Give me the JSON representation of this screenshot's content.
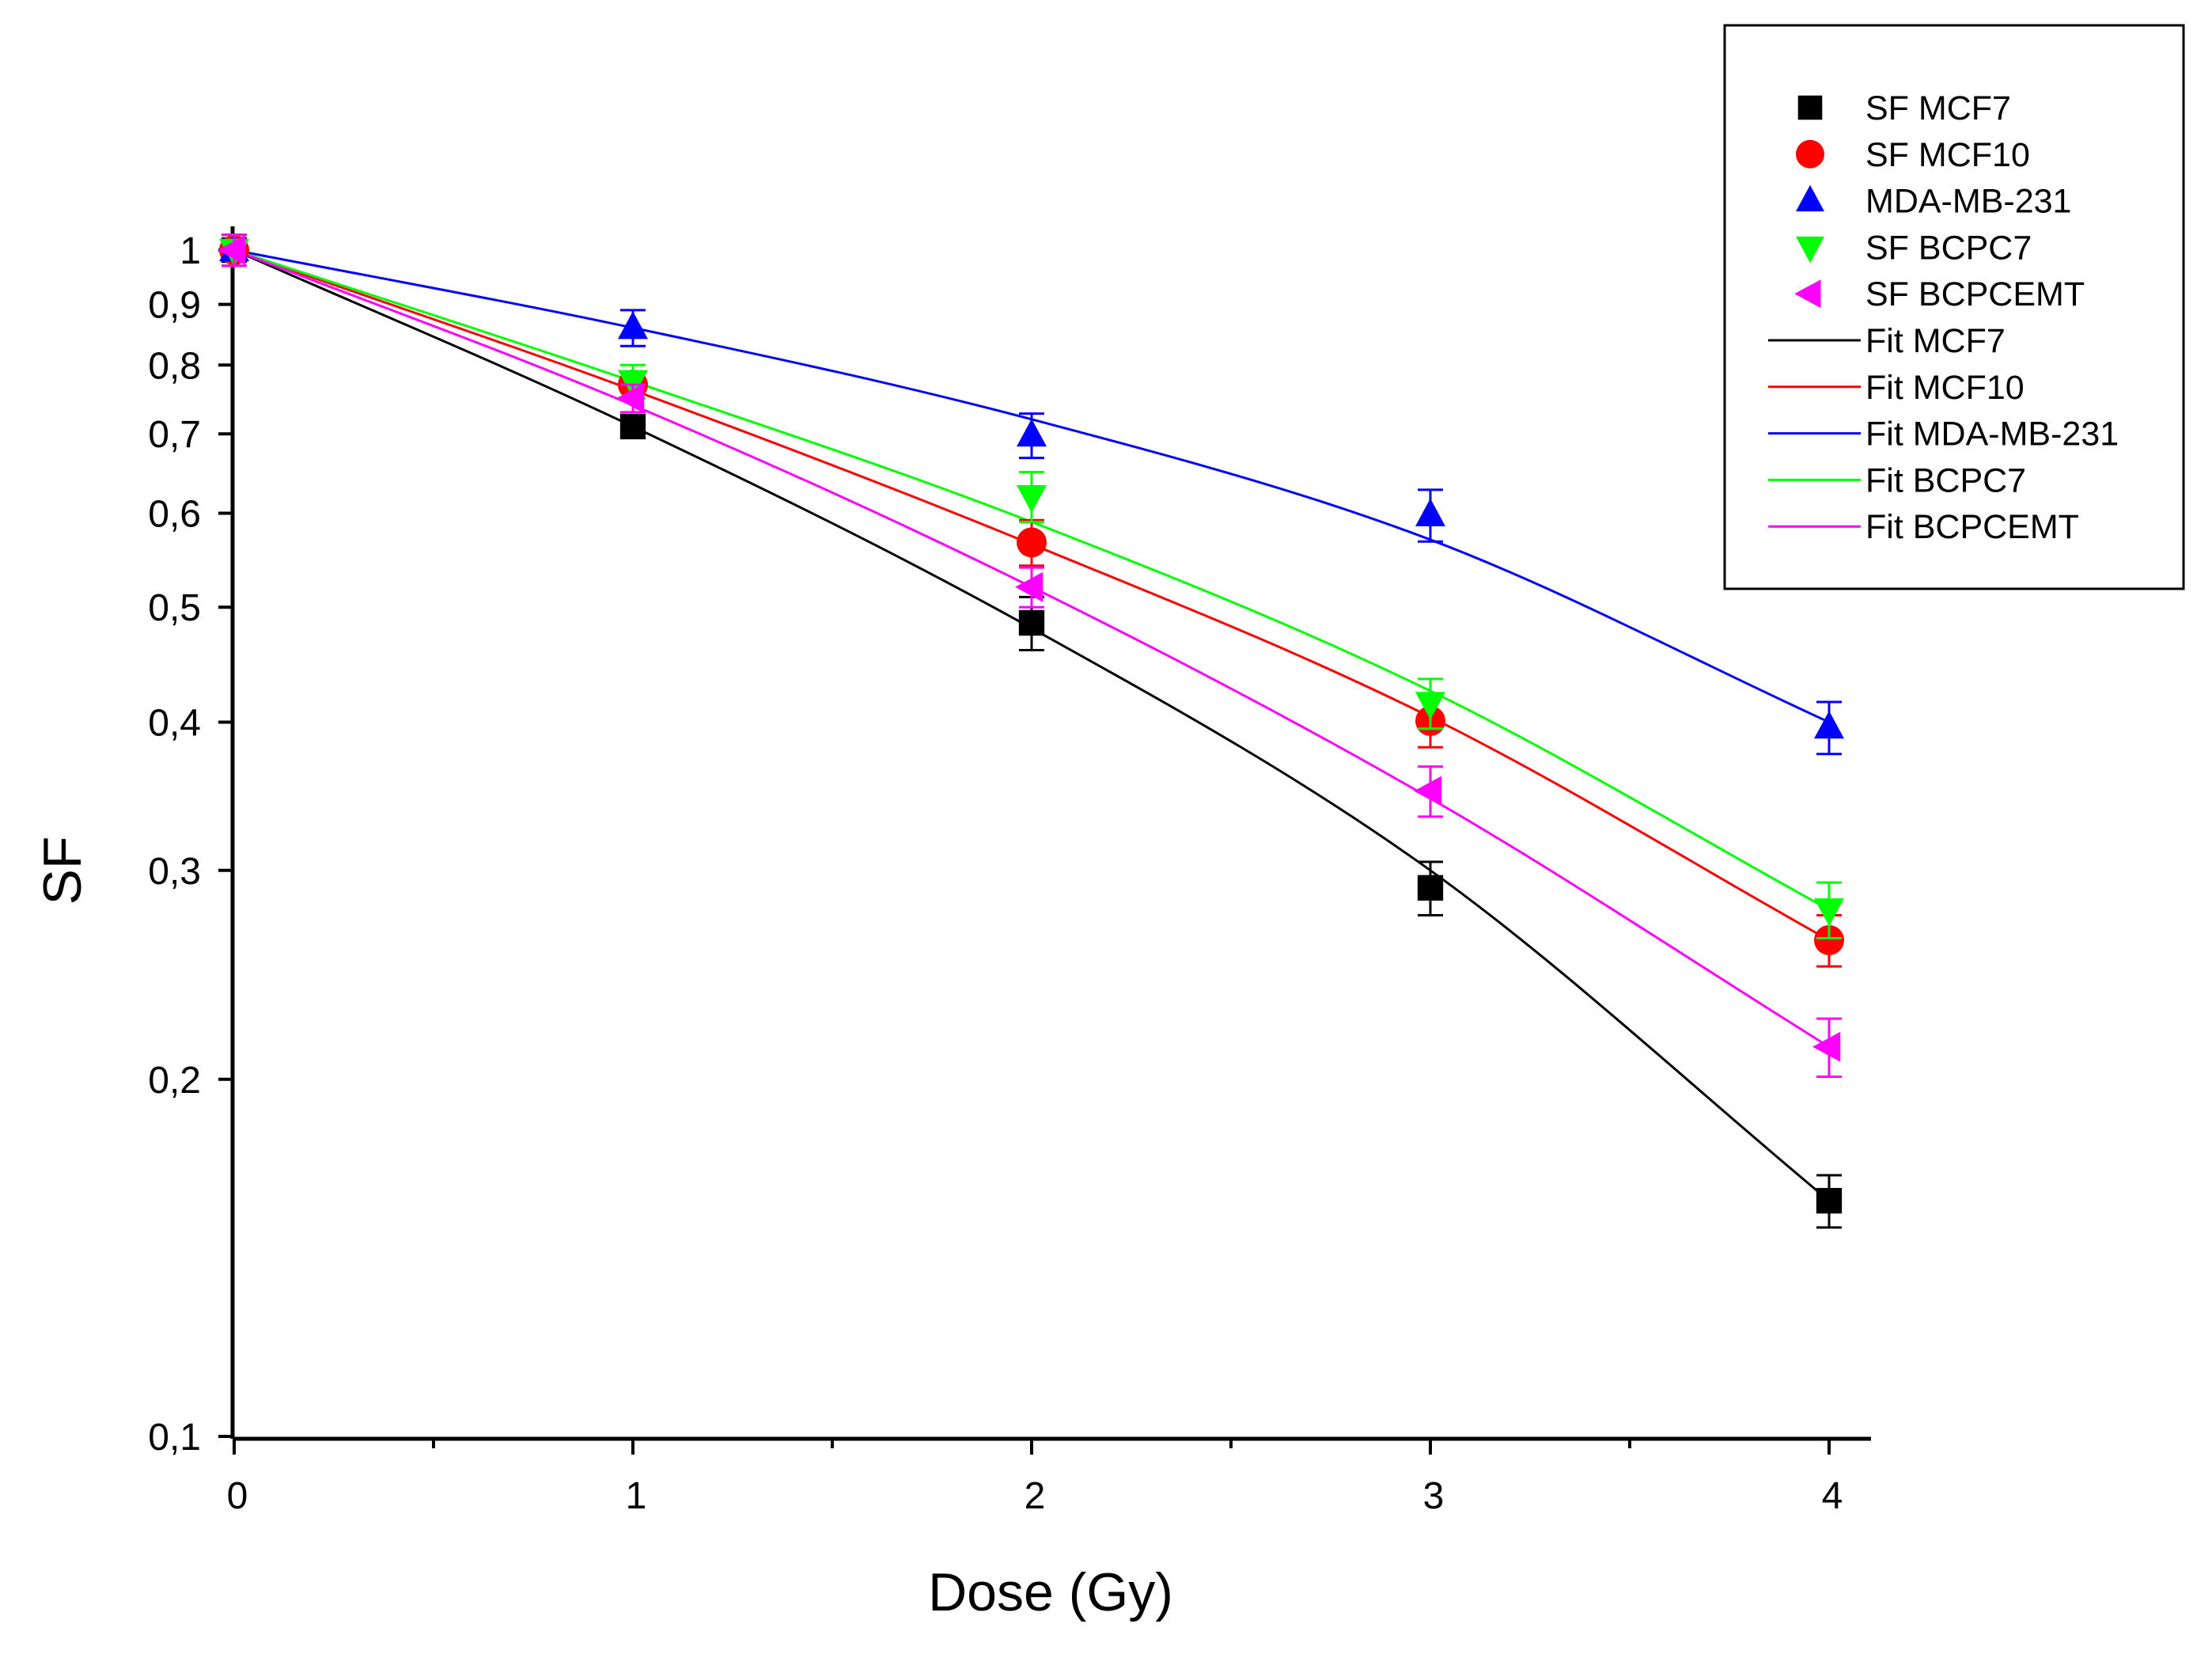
{
  "chart_data": {
    "type": "scatter",
    "title": "",
    "xlabel": "Dose (Gy)",
    "ylabel": "SF",
    "xlim": [
      0,
      4
    ],
    "ylim": [
      0.1,
      1.05
    ],
    "yscale": "log",
    "grid": false,
    "legend_position": "top-right",
    "x_ticks": [
      0,
      1,
      2,
      3,
      4
    ],
    "x_tick_labels": [
      "0",
      "1",
      "2",
      "3",
      "4"
    ],
    "y_ticks": [
      1,
      0.9,
      0.8,
      0.7,
      0.6,
      0.5,
      0.4,
      0.3,
      0.2,
      0.1
    ],
    "y_tick_labels": [
      "1",
      "0,9",
      "0,8",
      "0,7",
      "0,6",
      "0,5",
      "0,4",
      "0,3",
      "0,2",
      "0,1"
    ],
    "x": [
      0,
      1,
      2,
      3,
      4
    ],
    "series": [
      {
        "name": "SF MCF7",
        "marker": "square",
        "color": "#000000",
        "values": [
          1.0,
          0.71,
          0.485,
          0.29,
          0.158
        ],
        "errors": [
          0.03,
          0.015,
          0.025,
          0.015,
          0.008
        ]
      },
      {
        "name": "SF MCF10",
        "marker": "circle",
        "color": "#ff0000",
        "values": [
          1.0,
          0.77,
          0.567,
          0.401,
          0.262
        ],
        "errors": [
          0.03,
          0.02,
          0.025,
          0.02,
          0.013
        ]
      },
      {
        "name": "MDA-MB-231",
        "marker": "triangle-up",
        "color": "#0000ff",
        "values": [
          1.0,
          0.86,
          0.698,
          0.598,
          0.396
        ],
        "errors": [
          0.03,
          0.03,
          0.03,
          0.03,
          0.02
        ]
      },
      {
        "name": "SF BCPC7",
        "marker": "triangle-down",
        "color": "#00ff00",
        "values": [
          1.0,
          0.775,
          0.62,
          0.415,
          0.278
        ],
        "errors": [
          0.03,
          0.025,
          0.03,
          0.02,
          0.015
        ]
      },
      {
        "name": "SF BCPCEMT",
        "marker": "triangle-left",
        "color": "#ff00ff",
        "values": [
          1.0,
          0.75,
          0.52,
          0.35,
          0.213
        ],
        "errors": [
          0.03,
          0.02,
          0.02,
          0.017,
          0.012
        ]
      }
    ],
    "fits": [
      {
        "name": "Fit MCF7",
        "color": "#000000",
        "values": [
          1.0,
          0.71,
          0.48,
          0.3,
          0.158
        ]
      },
      {
        "name": "Fit MCF10",
        "color": "#ff0000",
        "values": [
          1.0,
          0.762,
          0.565,
          0.404,
          0.262
        ]
      },
      {
        "name": "Fit MDA-MB-231",
        "color": "#0000ff",
        "values": [
          1.0,
          0.86,
          0.72,
          0.57,
          0.4
        ]
      },
      {
        "name": "Fit BCPC7",
        "color": "#00ff00",
        "values": [
          1.0,
          0.775,
          0.59,
          0.425,
          0.278
        ]
      },
      {
        "name": "Fit BCPCEMT",
        "color": "#ff00ff",
        "values": [
          1.0,
          0.74,
          0.52,
          0.345,
          0.213
        ]
      }
    ]
  }
}
